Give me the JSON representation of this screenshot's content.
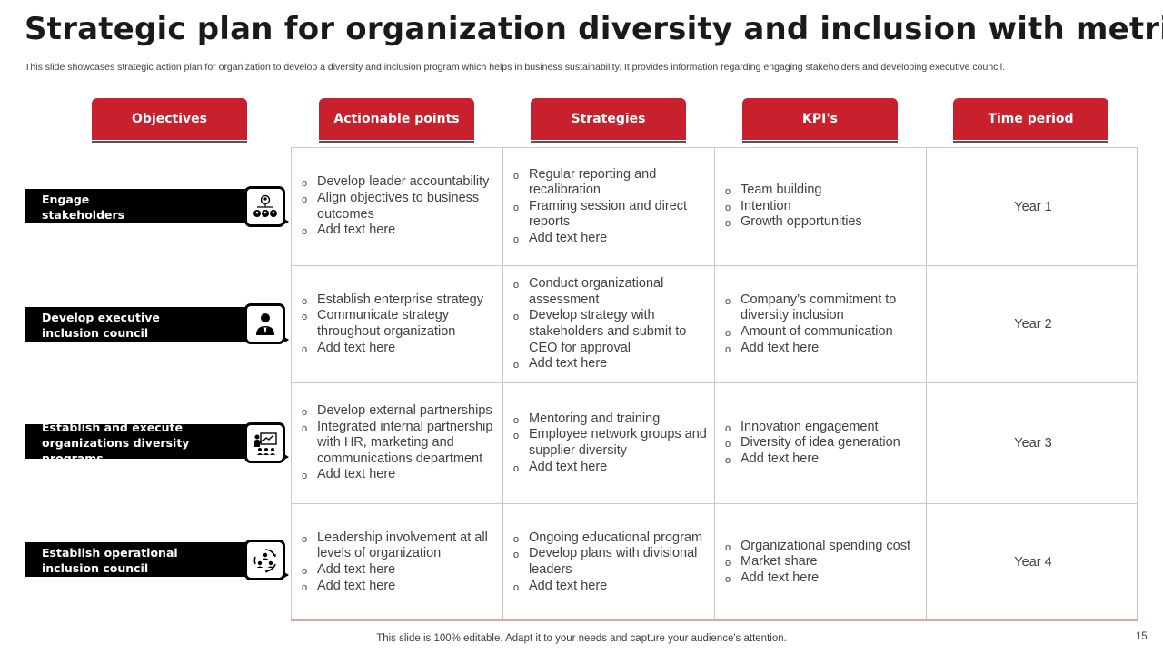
{
  "title": "Strategic plan for organization diversity and inclusion with metric",
  "subtitle": "This slide showcases strategic action plan for organization to develop a diversity and inclusion program which helps in business sustainability. It provides information regarding engaging stakeholders and developing executive council.",
  "headers": [
    "Objectives",
    "Actionable points",
    "Strategies",
    "KPI's",
    "Time period"
  ],
  "colors": {
    "accent": "#c8202d",
    "objective_bar": "#000000",
    "grid_line": "#c8c8c8"
  },
  "rows": [
    {
      "objective": "Engage stakeholders",
      "icon": "stakeholders-group-icon",
      "actionable_points": [
        "Develop leader accountability",
        "Align objectives to business outcomes",
        "Add text here"
      ],
      "strategies": [
        "Regular reporting and recalibration",
        "Framing session and direct reports",
        "Add text here"
      ],
      "kpis": [
        "Team building",
        "Intention",
        "Growth opportunities"
      ],
      "time_period": "Year 1"
    },
    {
      "objective": "Develop executive inclusion council",
      "icon": "executive-person-icon",
      "actionable_points": [
        "Establish enterprise strategy",
        "Communicate strategy throughout organization",
        "Add text here"
      ],
      "strategies": [
        "Conduct organizational assessment",
        "Develop strategy with stakeholders and submit to CEO for approval",
        "Add text here"
      ],
      "kpis": [
        "Company’s commitment to diversity inclusion",
        "Amount of communication",
        "Add text here"
      ],
      "time_period": "Year 2"
    },
    {
      "objective": "Establish and execute organizations diversity programs",
      "icon": "presentation-board-icon",
      "actionable_points": [
        "Develop external partnerships",
        "Integrated internal partnership with HR, marketing and communications department",
        "Add text here"
      ],
      "strategies": [
        "Mentoring and training",
        "Employee network groups and supplier diversity",
        "Add text here"
      ],
      "kpis": [
        "Innovation engagement",
        "Diversity of idea generation",
        "Add text here"
      ],
      "time_period": "Year 3"
    },
    {
      "objective": "Establish operational inclusion council",
      "icon": "council-cycle-icon",
      "actionable_points": [
        "Leadership involvement at all levels of organization",
        "Add text here",
        "Add text here"
      ],
      "strategies": [
        "Ongoing educational program",
        "Develop plans with divisional leaders",
        "Add text here"
      ],
      "kpis": [
        "Organizational spending cost",
        "Market share",
        "Add text here"
      ],
      "time_period": "Year 4"
    }
  ],
  "footer": "This slide is 100% editable. Adapt it to your needs and capture your audience's attention.",
  "page_number": "15"
}
